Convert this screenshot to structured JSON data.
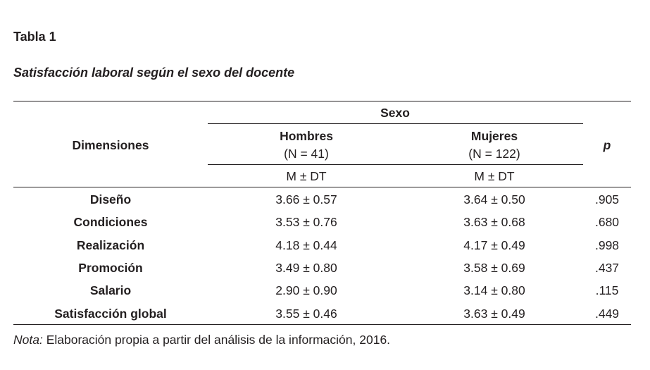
{
  "label": "Tabla 1",
  "title": "Satisfacción laboral según el sexo del docente",
  "header": {
    "dimensions": "Dimensiones",
    "group": "Sexo",
    "men": "Hombres",
    "men_n": "(N = 41)",
    "women": "Mujeres",
    "women_n": "(N = 122)",
    "stat": "M ± DT",
    "p": "p"
  },
  "rows": [
    {
      "dim": "Diseño",
      "men": "3.66 ± 0.57",
      "women": "3.64 ± 0.50",
      "p": ".905"
    },
    {
      "dim": "Condiciones",
      "men": "3.53 ± 0.76",
      "women": "3.63 ± 0.68",
      "p": ".680"
    },
    {
      "dim": "Realización",
      "men": "4.18 ± 0.44",
      "women": "4.17 ± 0.49",
      "p": ".998"
    },
    {
      "dim": "Promoción",
      "men": "3.49 ± 0.80",
      "women": "3.58 ± 0.69",
      "p": ".437"
    },
    {
      "dim": "Salario",
      "men": "2.90 ± 0.90",
      "women": "3.14 ± 0.80",
      "p": ".115"
    },
    {
      "dim": "Satisfacción global",
      "men": "3.55 ± 0.46",
      "women": "3.63 ± 0.49",
      "p": ".449"
    }
  ],
  "note": {
    "prefix": "Nota:",
    "text": " Elaboración propia  a partir del análisis de la información, 2016."
  }
}
